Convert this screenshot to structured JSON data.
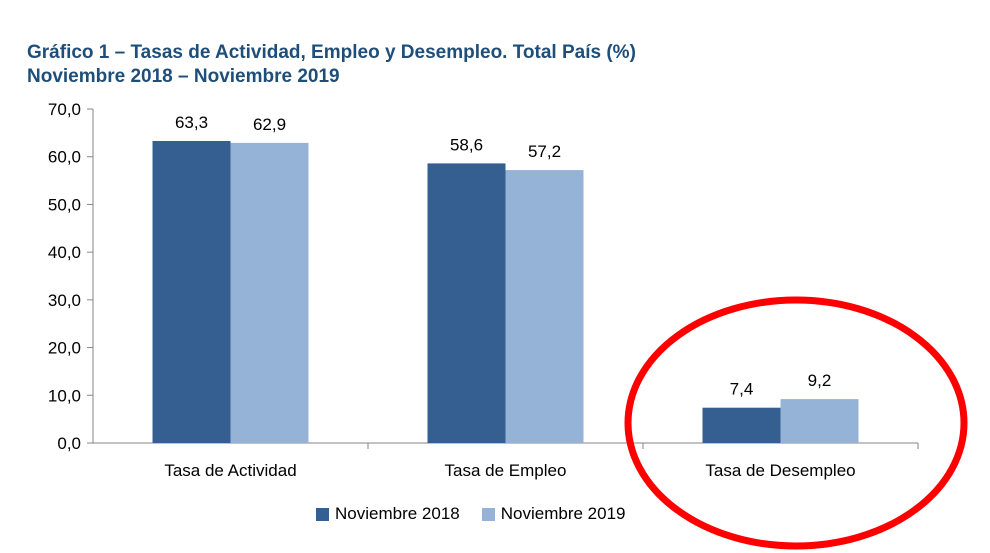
{
  "chart_data": {
    "type": "bar",
    "title": "Gráfico 1 – Tasas de Actividad, Empleo y Desempleo. Total País (%)",
    "subtitle": "Noviembre 2018 – Noviembre 2019",
    "categories": [
      "Tasa de Actividad",
      "Tasa de Empleo",
      "Tasa de Desempleo"
    ],
    "series": [
      {
        "name": "Noviembre 2018",
        "values": [
          63.3,
          58.6,
          7.4
        ],
        "labels": [
          "63,3",
          "58,6",
          "7,4"
        ],
        "color": "#365f91"
      },
      {
        "name": "Noviembre 2019",
        "values": [
          62.9,
          57.2,
          9.2
        ],
        "labels": [
          "62,9",
          "57,2",
          "9,2"
        ],
        "color": "#95b3d7"
      }
    ],
    "ylim": [
      0,
      70
    ],
    "yticks": [
      0,
      10,
      20,
      30,
      40,
      50,
      60,
      70
    ],
    "ytick_labels": [
      "0,0",
      "10,0",
      "20,0",
      "30,0",
      "40,0",
      "50,0",
      "60,0",
      "70,0"
    ],
    "xlabel": "",
    "ylabel": "",
    "grid": false,
    "legend_position": "bottom",
    "annotation": {
      "shape": "ellipse",
      "color": "#ff0000",
      "target": "Tasa de Desempleo"
    }
  }
}
